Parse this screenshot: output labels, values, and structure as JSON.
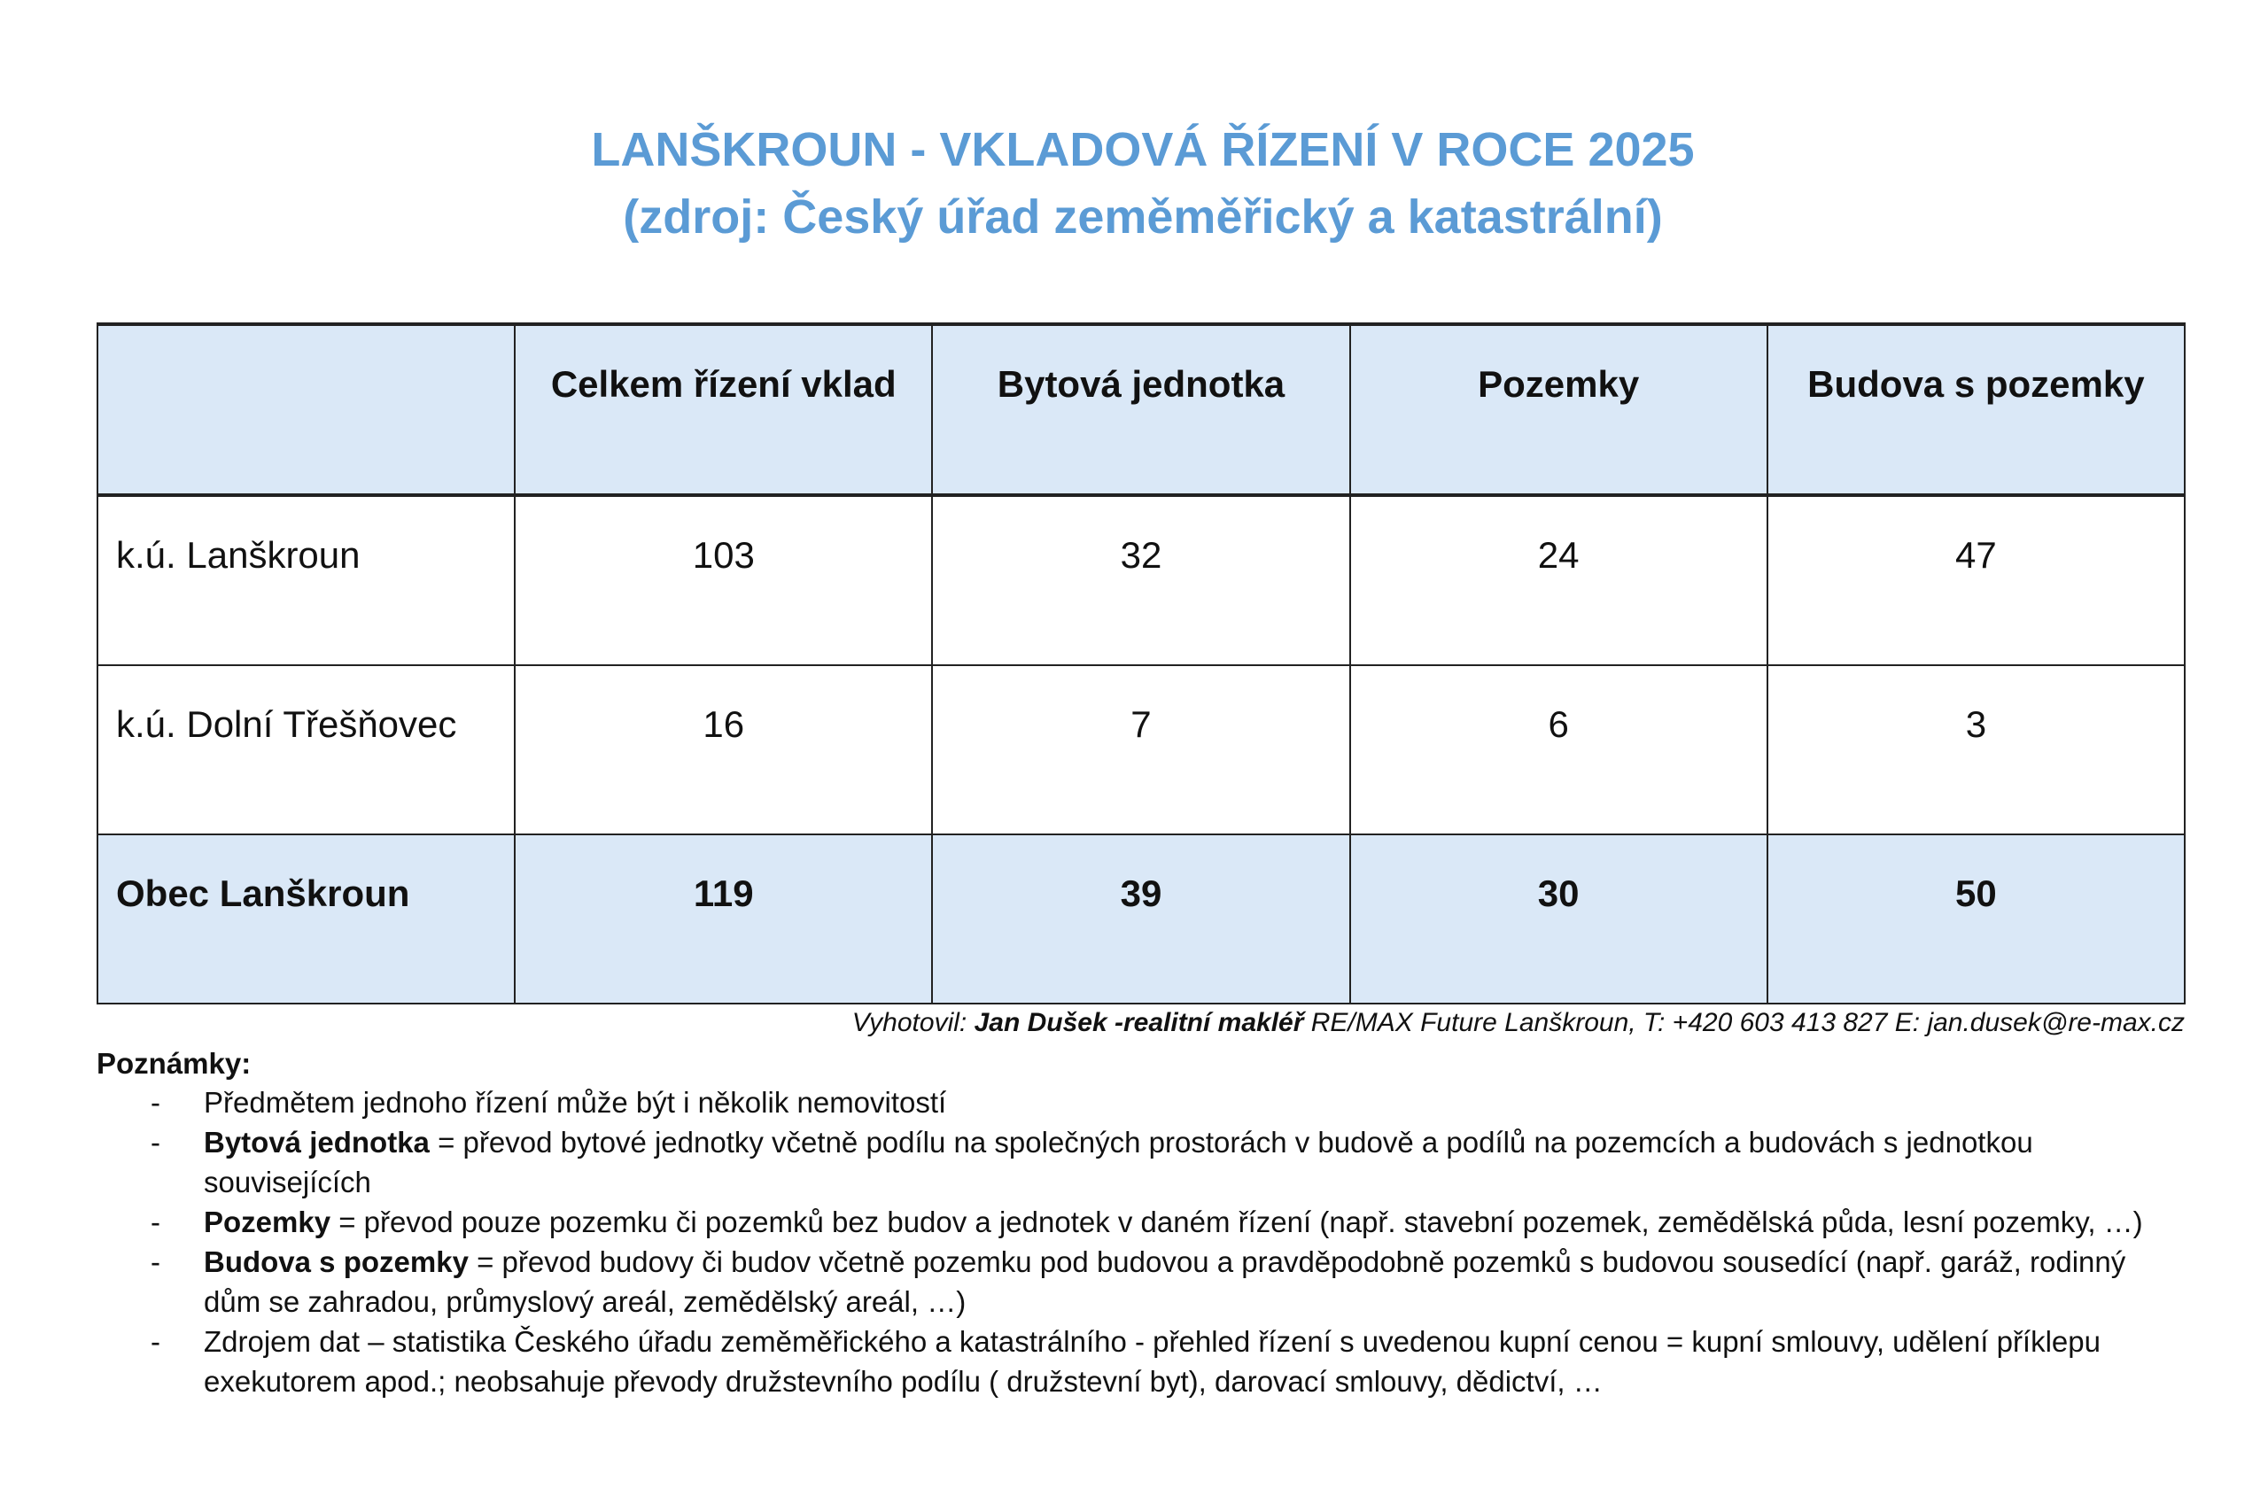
{
  "title": {
    "line1": "LANŠKROUN - VKLADOVÁ ŘÍZENÍ V ROCE 2025",
    "line2": "(zdroj: Český úřad zeměměřický a katastrální)",
    "color": "#5b9bd5"
  },
  "table": {
    "header_fill": "#dae8f7",
    "columns": [
      "",
      "Celkem řízení vklad",
      "Bytová jednotka",
      "Pozemky",
      "Budova s pozemky"
    ],
    "rows": [
      {
        "label": "k.ú. Lanškroun",
        "values": [
          "103",
          "32",
          "24",
          "47"
        ]
      },
      {
        "label": "k.ú. Dolní Třešňovec",
        "values": [
          "16",
          "7",
          "6",
          "3"
        ]
      },
      {
        "label": "Obec Lanškroun",
        "values": [
          "119",
          "39",
          "30",
          "50"
        ]
      }
    ]
  },
  "credit": {
    "prefix": "Vyhotovil: ",
    "author": "Jan Dušek -realitní makléř",
    "rest": " RE/MAX  Future Lanškroun,  T: +420 603 413 827  E: jan.dusek@re-max.cz"
  },
  "notes": {
    "heading": "Poznámky:",
    "bullet": "-",
    "items": [
      {
        "bold": "",
        "text": "Předmětem jednoho řízení může být i několik nemovitostí"
      },
      {
        "bold": "Bytová jednotka",
        "text": " = převod bytové jednotky včetně podílu na společných prostorách v budově a podílů na pozemcích a budovách s jednotkou souvisejících"
      },
      {
        "bold": "Pozemky",
        "text": " = převod pouze pozemku či pozemků bez budov a jednotek v daném řízení (např. stavební pozemek, zemědělská půda, lesní pozemky, …)"
      },
      {
        "bold": "Budova s pozemky",
        "text": " = převod budovy či budov včetně pozemku pod budovou a pravděpodobně pozemků s budovou sousedící (např. garáž, rodinný dům se zahradou, průmyslový areál, zemědělský areál, …)"
      },
      {
        "bold": "",
        "text": "Zdrojem dat – statistika Českého úřadu zeměměřického a katastrálního - přehled řízení s uvedenou kupní cenou = kupní smlouvy, udělení příklepu exekutorem apod.; neobsahuje převody družstevního podílu ( družstevní byt), darovací smlouvy, dědictví, …"
      }
    ]
  }
}
